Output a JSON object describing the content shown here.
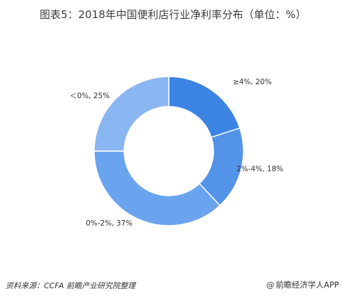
{
  "title": "图表5：2018年中国便利店行业净利率分布（单位：%）",
  "chart_data": {
    "type": "pie",
    "donut": true,
    "categories": [
      "≥4%",
      "2%-4%",
      "0%-2%",
      "＜0%"
    ],
    "values": [
      20,
      18,
      37,
      25
    ],
    "labels": [
      "≥4%, 20%",
      "2%-4%, 18%",
      "0%-2%, 37%",
      "＜0%, 25%"
    ],
    "colors": [
      "#3c84e3",
      "#5494e8",
      "#6aa3ee",
      "#8ab6f2"
    ],
    "title": "图表5：2018年中国便利店行业净利率分布（单位：%）"
  },
  "footer": {
    "source": "资料来源：CCFA 前瞻产业研究院整理",
    "brand_symbol": "@",
    "brand": "前瞻经济学人APP"
  },
  "watermark": {
    "text": "前瞻产业研究院"
  }
}
